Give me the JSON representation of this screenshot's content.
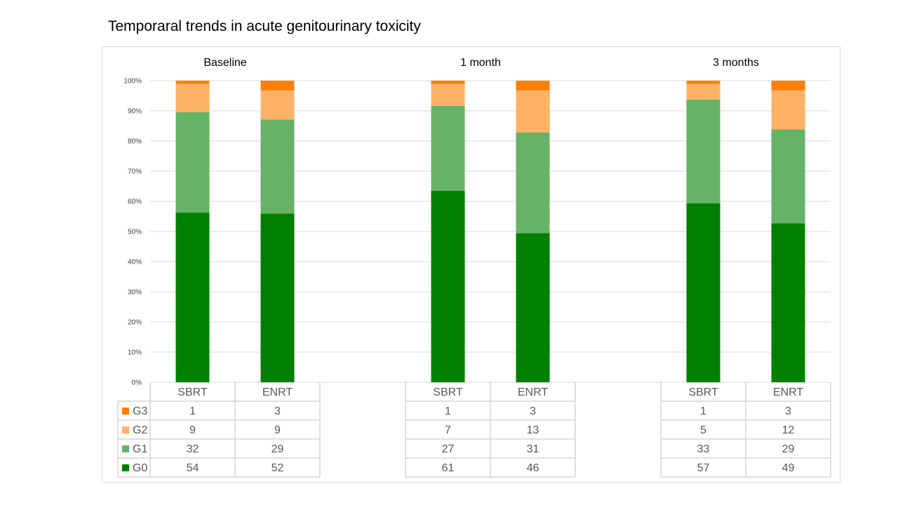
{
  "title": "Temporaral trends in acute genitourinary toxicity",
  "chart_data": {
    "type": "bar",
    "stacked": true,
    "normalized": true,
    "groups": [
      "Baseline",
      "1 month",
      "3 months"
    ],
    "categories": [
      "SBRT",
      "ENRT"
    ],
    "series": [
      {
        "name": "G0",
        "color": "#008000",
        "values": [
          [
            54,
            52
          ],
          [
            61,
            46
          ],
          [
            57,
            49
          ]
        ]
      },
      {
        "name": "G1",
        "color": "#66b266",
        "values": [
          [
            32,
            29
          ],
          [
            27,
            31
          ],
          [
            33,
            29
          ]
        ]
      },
      {
        "name": "G2",
        "color": "#ffb266",
        "values": [
          [
            9,
            9
          ],
          [
            7,
            13
          ],
          [
            5,
            12
          ]
        ]
      },
      {
        "name": "G3",
        "color": "#ff8000",
        "values": [
          [
            1,
            3
          ],
          [
            1,
            3
          ],
          [
            1,
            3
          ]
        ]
      }
    ],
    "y_ticks": [
      "0%",
      "10%",
      "20%",
      "30%",
      "40%",
      "50%",
      "60%",
      "70%",
      "80%",
      "90%",
      "100%"
    ],
    "ylim": [
      0,
      100
    ],
    "grid": true,
    "legend": "data-table"
  }
}
